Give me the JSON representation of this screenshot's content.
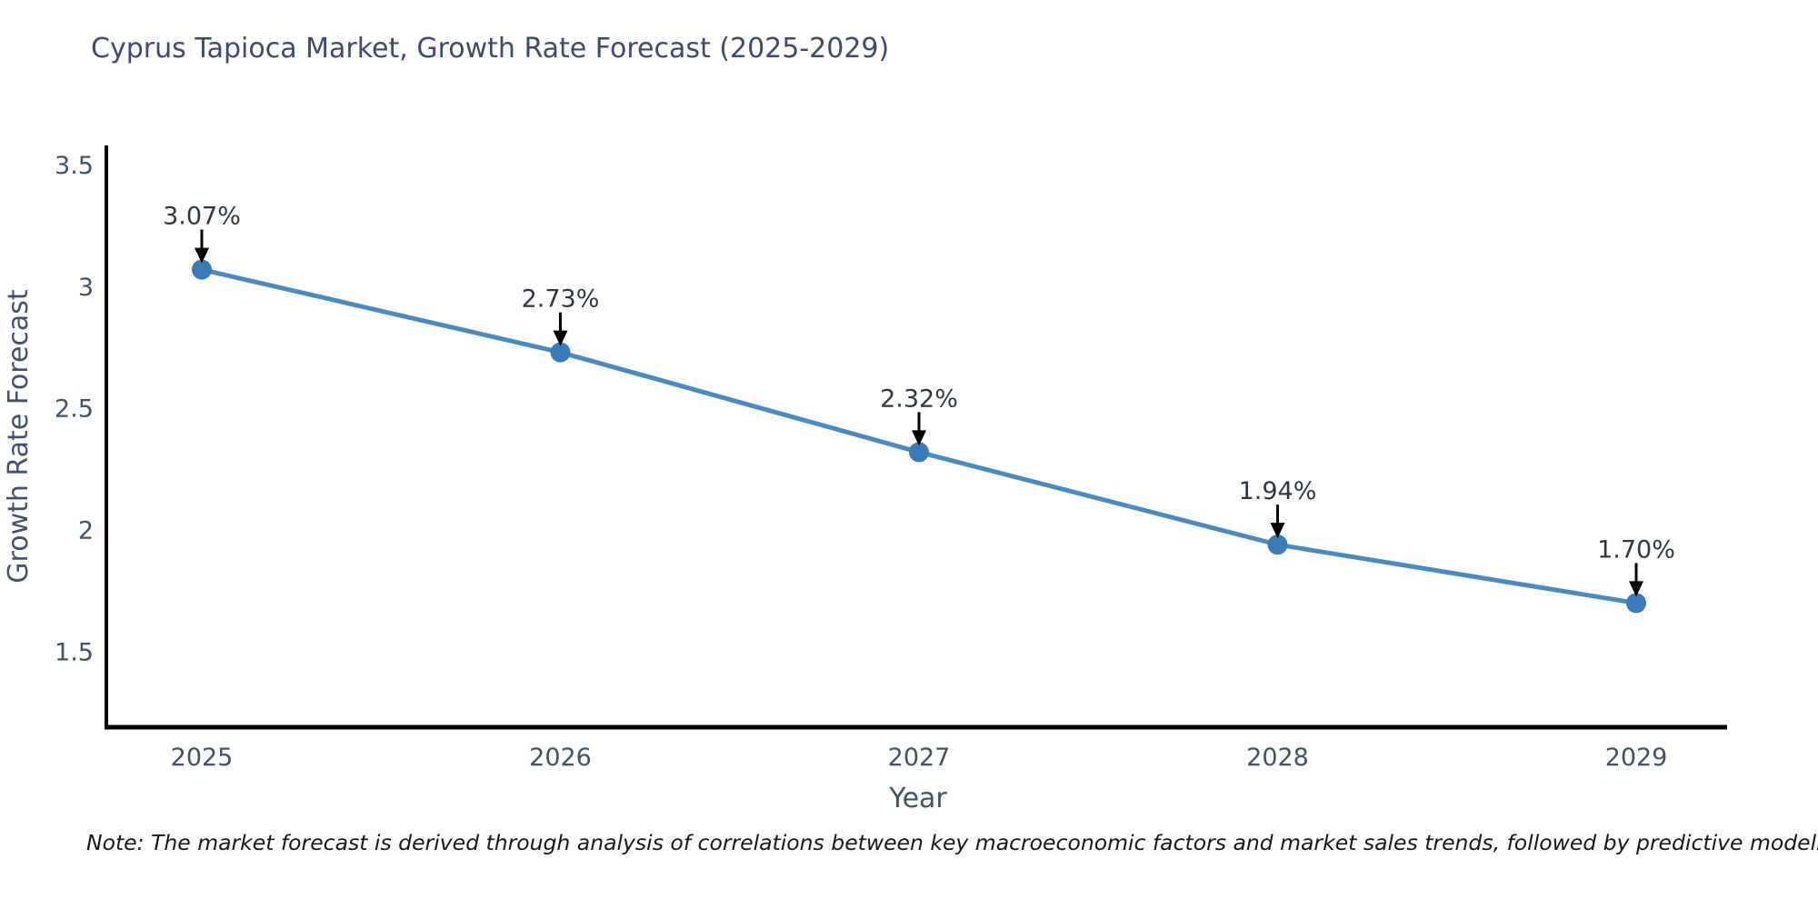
{
  "title": "Cyprus Tapioca Market, Growth Rate Forecast (2025-2029)",
  "note": "Note: The market forecast is derived through analysis of correlations between key macroeconomic factors and market sales trends, followed by predictive modeling to project future sales",
  "chart_data": {
    "type": "line",
    "categories": [
      "2025",
      "2026",
      "2027",
      "2028",
      "2029"
    ],
    "series": [
      {
        "name": "Growth Rate Forecast",
        "values": [
          3.07,
          2.73,
          2.32,
          1.94,
          1.7
        ]
      }
    ],
    "point_labels": [
      "3.07%",
      "2.73%",
      "2.32%",
      "1.94%",
      "1.70%"
    ],
    "title": "Cyprus Tapioca Market, Growth Rate Forecast (2025-2029)",
    "xlabel": "Year",
    "ylabel": "Growth Rate Forecast",
    "yticks": [
      1.5,
      2,
      2.5,
      3,
      3.5
    ],
    "ytick_labels": [
      "1.5",
      "2",
      "2.5",
      "3",
      "3.5"
    ],
    "ylim": [
      1.19,
      3.58
    ],
    "grid": false,
    "legend": false,
    "annotation_style": "value label with downward black arrow onto each marker",
    "colors": {
      "line": "#4a8ac4",
      "marker": "#3a7ab8",
      "axis": "#000000",
      "tick_label": "#42516d",
      "axis_title": "#42516d",
      "annotation_text": "#2f3745",
      "title_text": "#3f4a6e",
      "background": "#ffffff"
    }
  }
}
